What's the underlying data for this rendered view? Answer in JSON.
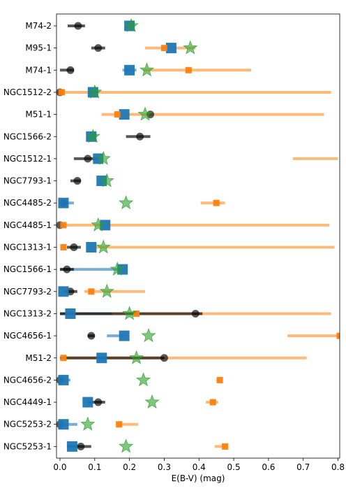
{
  "chart_data": {
    "type": "scatter",
    "xlabel": "E(B-V) (mag)",
    "ylabel": "",
    "xlim": [
      -0.01,
      0.805
    ],
    "xticks": [
      "0.0",
      "0.1",
      "0.2",
      "0.3",
      "0.4",
      "0.5",
      "0.6",
      "0.7",
      "0.8"
    ],
    "xtick_values": [
      0.0,
      0.1,
      0.2,
      0.3,
      0.4,
      0.5,
      0.6,
      0.7,
      0.8
    ],
    "legend": "none",
    "grid": false,
    "colors": {
      "black": "#000000",
      "blue": "#1f77b4",
      "orange": "#ff7f0e",
      "green": "#2ca02c"
    },
    "categories": [
      "M74-2",
      "M95-1",
      "M74-1",
      "NGC1512-2",
      "M51-1",
      "NGC1566-2",
      "NGC1512-1",
      "NGC7793-1",
      "NGC4485-2",
      "NGC4485-1",
      "NGC1313-1",
      "NGC1566-1",
      "NGC7793-2",
      "NGC1313-2",
      "NGC4656-1",
      "M51-2",
      "NGC4656-2",
      "NGC4449-1",
      "NGC5253-2",
      "NGC5253-1"
    ],
    "series": [
      {
        "marker": "circle",
        "color": "#000000",
        "values": [
          0.052,
          0.11,
          0.03,
          0.0,
          0.26,
          0.23,
          0.08,
          0.05,
          0.01,
          0.0,
          0.04,
          0.02,
          0.03,
          0.39,
          0.09,
          0.3,
          0.0,
          0.11,
          0.0,
          0.06
        ],
        "err_low": [
          0.03,
          0.02,
          0.03,
          0.0,
          null,
          0.04,
          0.04,
          0.02,
          0.0,
          0.0,
          0.02,
          0.02,
          0.02,
          0.39,
          0.01,
          0.3,
          0.0,
          0.03,
          0.0,
          0.04
        ],
        "err_high": [
          0.02,
          0.02,
          0.01,
          0.0,
          null,
          0.03,
          0.03,
          0.01,
          0.0,
          0.0,
          0.02,
          0.02,
          0.02,
          0.02,
          0.01,
          0.0,
          0.0,
          0.02,
          0.0,
          0.03
        ]
      },
      {
        "marker": "square",
        "color": "#1f77b4",
        "values": [
          0.2,
          0.32,
          0.2,
          0.095,
          0.185,
          0.09,
          0.11,
          0.12,
          0.01,
          0.13,
          0.09,
          0.18,
          0.01,
          0.03,
          0.185,
          0.12,
          0.01,
          0.08,
          0.01,
          0.035
        ],
        "err_low": [
          null,
          null,
          0.02,
          0.01,
          null,
          null,
          null,
          null,
          0.0,
          null,
          null,
          0.18,
          0.0,
          0.03,
          0.05,
          0.0,
          0.01,
          null,
          0.0,
          0.0
        ],
        "err_high": [
          null,
          null,
          0.02,
          0.01,
          null,
          null,
          null,
          null,
          0.03,
          null,
          null,
          0.0,
          0.01,
          0.12,
          0.0,
          0.0,
          0.02,
          null,
          0.04,
          0.0
        ]
      },
      {
        "marker": "square-small",
        "color": "#ff7f0e",
        "values": [
          null,
          0.3,
          0.37,
          0.005,
          0.165,
          null,
          null,
          null,
          0.45,
          0.01,
          0.01,
          null,
          0.09,
          0.22,
          0.805,
          0.01,
          0.46,
          0.44,
          0.17,
          0.475
        ],
        "err_low": [
          null,
          0.055,
          0.13,
          0.0,
          0.045,
          null,
          null,
          null,
          0.045,
          0.0,
          0.0,
          null,
          0.02,
          0.22,
          0.15,
          0.0,
          0.01,
          0.02,
          0.0,
          0.03
        ],
        "err_high": [
          null,
          0.09,
          0.18,
          0.775,
          0.595,
          null,
          null,
          null,
          0.025,
          0.765,
          0.0,
          null,
          0.155,
          0.56,
          0.0,
          0.7,
          0.0,
          0.015,
          0.055,
          0.0
        ]
      },
      {
        "marker": "star",
        "color": "#2ca02c",
        "values": [
          0.205,
          0.375,
          0.25,
          0.1,
          0.245,
          0.095,
          0.125,
          0.135,
          0.19,
          0.11,
          0.125,
          0.165,
          0.135,
          0.2,
          0.255,
          0.22,
          0.24,
          0.265,
          0.08,
          0.19
        ]
      }
    ],
    "bands": [
      {
        "row": "NGC1512-1",
        "x1": 0.67,
        "x2": 0.8,
        "color": "#ff7f0e"
      },
      {
        "row": "NGC1313-1",
        "x1": 0.1,
        "x2": 0.79,
        "color": "#ff7f0e"
      }
    ]
  }
}
